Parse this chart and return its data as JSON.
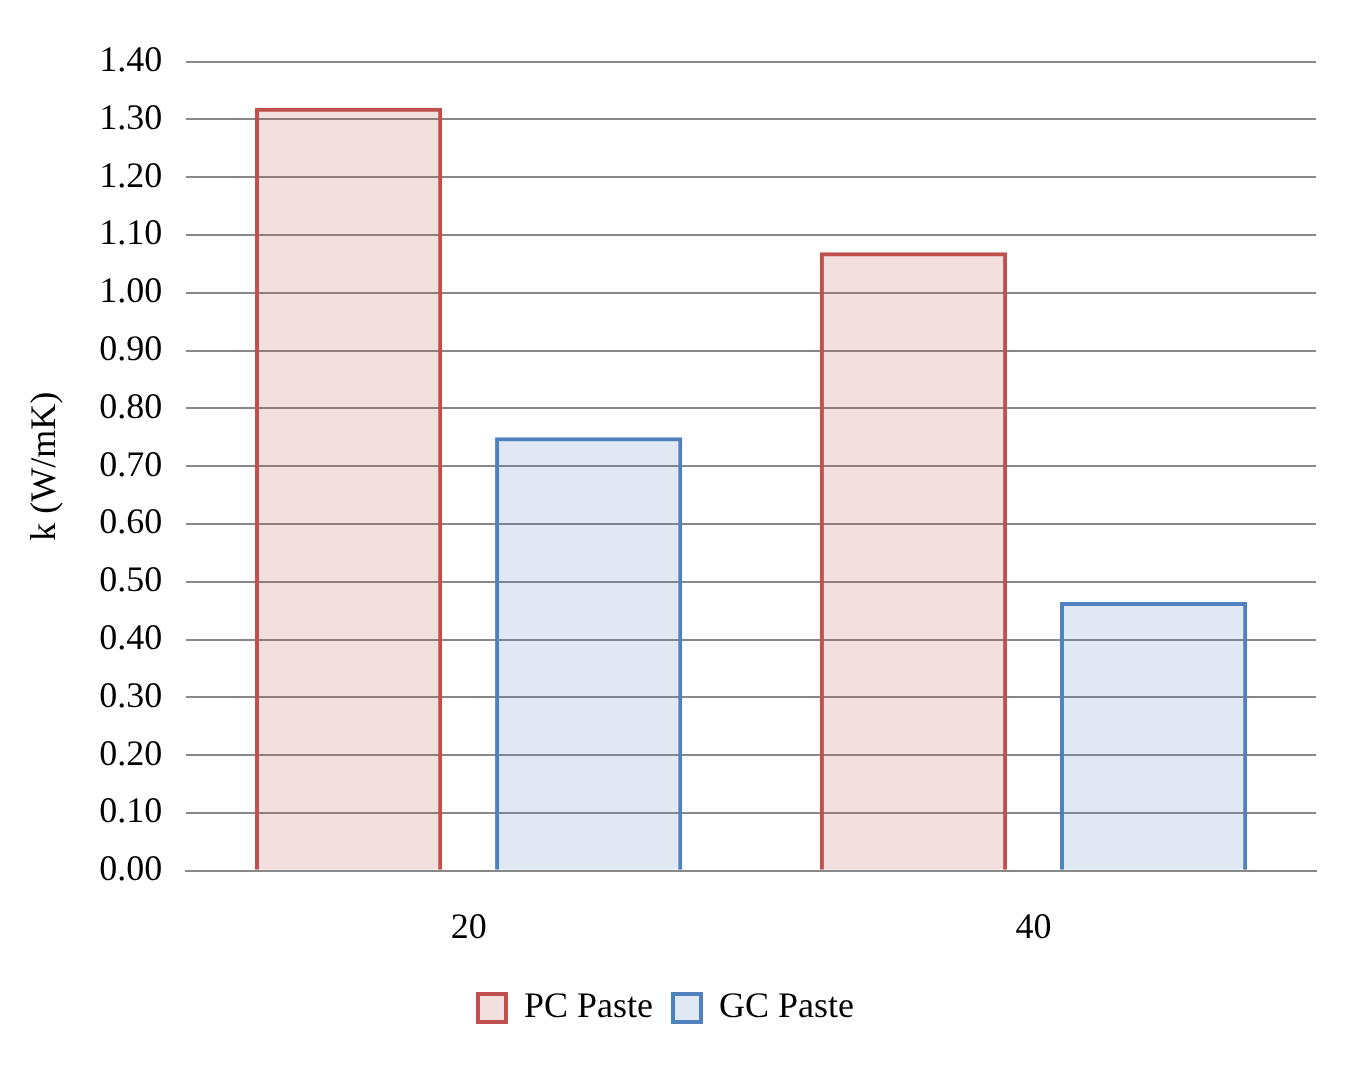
{
  "chart_data": {
    "type": "bar",
    "ylabel": "k (W/mK)",
    "categories": [
      "20",
      "40"
    ],
    "series": [
      {
        "name": "PC Paste",
        "color": "#c0504d",
        "values": [
          1.32,
          1.07
        ]
      },
      {
        "name": "GC Paste",
        "color": "#4f81bd",
        "values": [
          0.75,
          0.465
        ]
      }
    ],
    "ylim": [
      0,
      1.4
    ],
    "yticks": [
      {
        "value": 0,
        "label": "0.00"
      },
      {
        "value": 0.1,
        "label": "0.10"
      },
      {
        "value": 0.2,
        "label": "0.20"
      },
      {
        "value": 0.3,
        "label": "0.30"
      },
      {
        "value": 0.4,
        "label": "0.40"
      },
      {
        "value": 0.5,
        "label": "0.50"
      },
      {
        "value": 0.6,
        "label": "0.60"
      },
      {
        "value": 0.7,
        "label": "0.70"
      },
      {
        "value": 0.8,
        "label": "0.80"
      },
      {
        "value": 0.9,
        "label": "0.90"
      },
      {
        "value": 1.0,
        "label": "1.00"
      },
      {
        "value": 1.1,
        "label": "1.10"
      },
      {
        "value": 1.2,
        "label": "1.20"
      },
      {
        "value": 1.3,
        "label": "1.30"
      },
      {
        "value": 1.4,
        "label": "1.40"
      }
    ],
    "grid": "y",
    "legend": "bottom"
  }
}
